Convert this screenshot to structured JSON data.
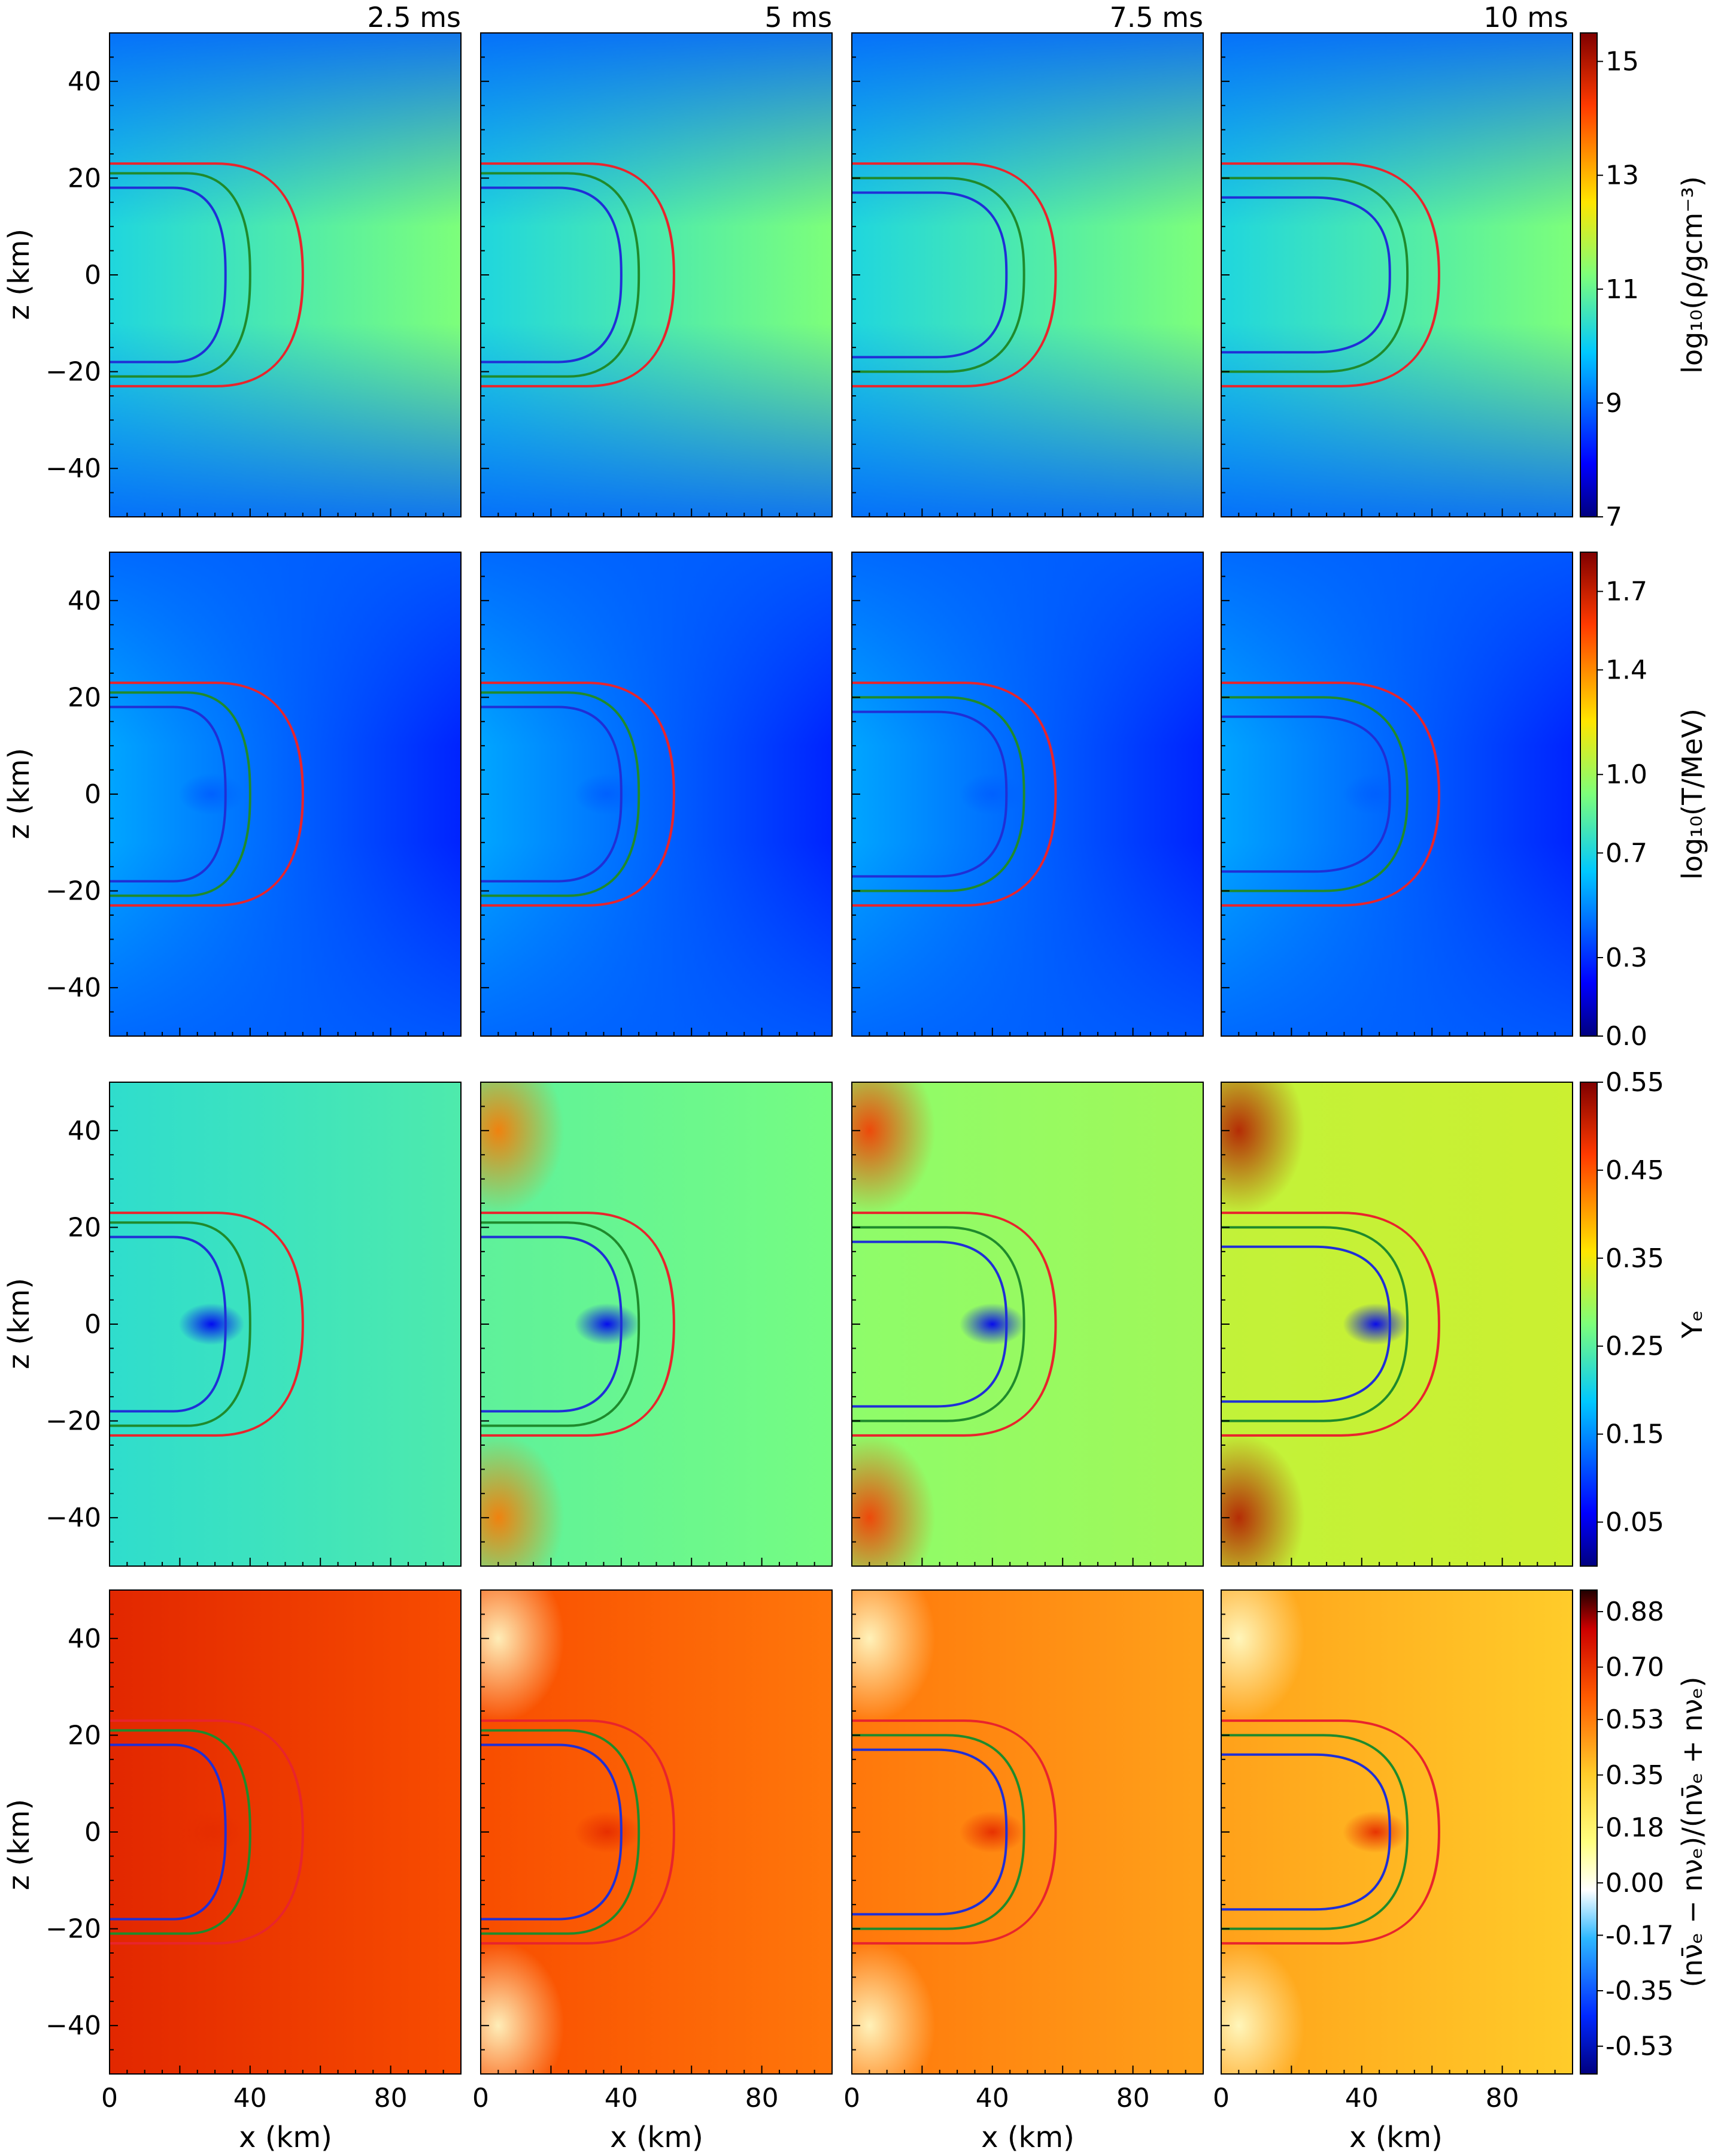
{
  "chart_data": {
    "type": "heatmap",
    "times": [
      "2.5 ms",
      "5 ms",
      "7.5 ms",
      "10 ms"
    ],
    "xlabel": "x (km)",
    "ylabel": "z (km)",
    "x_ticks": [
      "0",
      "40",
      "80"
    ],
    "z_ticks": [
      "40",
      "20",
      "0",
      "−20",
      "−40"
    ],
    "xlim": [
      0,
      100
    ],
    "ylim": [
      -50,
      50
    ],
    "contour_colors": {
      "outer": "#e8242c",
      "middle": "#1f8a2c",
      "inner": "#1f2fd6"
    },
    "contour_extent_km": {
      "times": [
        "2.5 ms",
        "5 ms",
        "7.5 ms",
        "10 ms"
      ],
      "inner_x": [
        33,
        40,
        44,
        48
      ],
      "middle_x": [
        40,
        45,
        49,
        53
      ],
      "outer_x": [
        55,
        55,
        58,
        62
      ],
      "inner_z": [
        18,
        18,
        17,
        16
      ],
      "middle_z": [
        21,
        21,
        20,
        20
      ],
      "outer_z": [
        23,
        23,
        23,
        23
      ]
    },
    "rows": [
      {
        "quantity": "density",
        "colorbar_label": "log₁₀(ρ/gcm⁻³)",
        "colorbar_ticks": [
          "15",
          "13",
          "11",
          "9",
          "7"
        ],
        "range": [
          7,
          15.5
        ],
        "colormap": "jet"
      },
      {
        "quantity": "temperature",
        "colorbar_label": "log₁₀(T/MeV)",
        "colorbar_ticks": [
          "1.7",
          "1.4",
          "1.0",
          "0.7",
          "0.3",
          "0.0"
        ],
        "range": [
          0.0,
          1.85
        ],
        "colormap": "jet"
      },
      {
        "quantity": "electron fraction",
        "colorbar_label": "Yₑ",
        "colorbar_ticks": [
          "0.55",
          "0.45",
          "0.35",
          "0.25",
          "0.15",
          "0.05"
        ],
        "range": [
          0.0,
          0.55
        ],
        "colormap": "jet"
      },
      {
        "quantity": "neutrino asymmetry",
        "colorbar_label": "(nν̄ₑ − nνₑ)/(nν̄ₑ + nνₑ)",
        "colorbar_ticks": [
          "0.88",
          "0.70",
          "0.53",
          "0.35",
          "0.18",
          "0.00",
          "-0.17",
          "-0.35",
          "-0.53"
        ],
        "range": [
          -0.62,
          0.95
        ],
        "colormap": "diverging"
      }
    ]
  }
}
